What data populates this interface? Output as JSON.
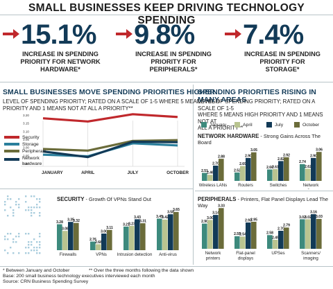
{
  "title": "SMALL BUSINESSES KEEP DRIVING TECHNOLOGY SPENDING",
  "stats": [
    {
      "value": "15.1%",
      "desc": [
        "INCREASE IN SPENDING",
        "PRIORITY FOR NETWORK",
        "HARDWARE*"
      ]
    },
    {
      "value": "9.8%",
      "desc": [
        "INCREASE IN SPENDING",
        "PRIORITY FOR",
        "PERIPHERALS*"
      ]
    },
    {
      "value": "7.4%",
      "desc": [
        "INCREASE IN SPENDING",
        "PRIORITY FOR",
        "STORAGE*"
      ]
    }
  ],
  "colors": {
    "security": "#c0282c",
    "storage": "#2a7f9c",
    "peripherals": "#6b6c3a",
    "network": "#123a57",
    "january": "#3d8a7d",
    "april": "#b9c490",
    "july": "#123a57",
    "october": "#6b6c3a",
    "arrow": "#c0282c",
    "dots": "#a9cddd"
  },
  "left_section": {
    "heading": "SMALL BUSINESSES MOVE SPENDING PRIORITIES HIGHER",
    "sub": [
      "LEVEL OF SPENDING PRIORITY; RATED ON A SCALE OF 1-5 WHERE 5 MEANS HIGH",
      "PRIORITY AND 1 MEANS NOT AT ALL A PRIORITY**"
    ]
  },
  "right_section": {
    "heading": "SPENDING PRIORITIES RISING IN MANY AREAS",
    "sub": [
      "LEVEL OF SPENDING PRIORITY; RATED ON A SCALE OF 1-5",
      "WHERE 5 MEANS HIGH PRIORITY AND 1 MEANS NOT AT",
      "ALL A PRIORITY**"
    ]
  },
  "bar_legend": [
    "January",
    "April",
    "July",
    "October"
  ],
  "chart_data": [
    {
      "type": "line",
      "categories": [
        "JANUARY",
        "APRIL",
        "JULY",
        "OCTOBER"
      ],
      "yticks": [
        "3.20",
        "3.15",
        "3.10",
        "3.05",
        "3.00",
        "2.95",
        "2.90"
      ],
      "ylim": [
        2.9,
        3.2
      ],
      "series": [
        {
          "name": "Security",
          "color_key": "security",
          "values": [
            3.18,
            3.16,
            3.205,
            3.188
          ]
        },
        {
          "name": "Storage",
          "color_key": "storage",
          "values": [
            2.955,
            2.945,
            3.025,
            3.012
          ]
        },
        {
          "name": "Peripherals",
          "color_key": "peripherals",
          "values": [
            2.99,
            2.98,
            3.04,
            3.045
          ]
        },
        {
          "name": "Network hardware",
          "color_key": "network",
          "values": [
            2.975,
            2.94,
            3.035,
            3.032
          ]
        }
      ]
    },
    {
      "type": "bar",
      "title": "NETWORK HARDWARE",
      "subtitle": " - Strong Gains Across The Board",
      "categories": [
        [
          "Wireless LANs"
        ],
        [
          "Routers"
        ],
        [
          "Switches"
        ],
        [
          "Network",
          "appliances"
        ]
      ],
      "series": [
        {
          "name": "January",
          "values": [
            2.51,
            2.52,
            2.6,
            2.74
          ]
        },
        {
          "name": "April",
          "values": [
            2.46,
            2.69,
            2.61,
            2.62
          ]
        },
        {
          "name": "July",
          "values": [
            2.7,
            2.9,
            2.82,
            2.9
          ]
        },
        {
          "name": "October",
          "values": [
            2.88,
            3.05,
            2.92,
            3.06
          ]
        }
      ],
      "labels": [
        [
          "2.51",
          "2.46",
          "2.70",
          "2.88"
        ],
        [
          "2.52",
          "2.69",
          "2.90",
          "3.05"
        ],
        [
          "2.60",
          "2.61",
          "2.82",
          "2.92"
        ],
        [
          "2.74",
          "2.62",
          "2.90",
          "3.06"
        ]
      ]
    },
    {
      "type": "bar",
      "title": "SECURITY",
      "subtitle": " - Growth Of VPNs Stand Out",
      "categories": [
        [
          "Firewalls"
        ],
        [
          "VPNs"
        ],
        [
          "Intrusion detection"
        ],
        [
          "Anti-virus"
        ]
      ],
      "series": [
        {
          "name": "January",
          "values": [
            3.28,
            2.76,
            3.21,
            3.45
          ]
        },
        {
          "name": "April",
          "values": [
            3.08,
            2.68,
            3.23,
            3.42
          ]
        },
        {
          "name": "July",
          "values": [
            3.35,
            3.0,
            3.43,
            3.58
          ]
        },
        {
          "name": "October",
          "values": [
            3.32,
            3.11,
            3.31,
            3.65
          ]
        }
      ],
      "labels": [
        [
          "3.28",
          "3.08",
          "3.35",
          "3.32"
        ],
        [
          "2.76",
          "2.68",
          "3.00",
          "3.11"
        ],
        [
          "3.21",
          "3.23",
          "3.43",
          "3.31"
        ],
        [
          "3.45",
          "3.42",
          "3.58",
          "3.65"
        ]
      ]
    },
    {
      "type": "bar",
      "title": "PERIPHERALS",
      "subtitle": " - Printers, Flat Panel Displays Lead The Way",
      "categories": [
        [
          "Network",
          "printers"
        ],
        [
          "Flat-panel",
          "displays"
        ],
        [
          "UPSes"
        ],
        [
          "Scanners/",
          "imaging"
        ]
      ],
      "series": [
        {
          "name": "January",
          "values": [
            2.9,
            2.55,
            2.58,
            3.02
          ]
        },
        {
          "name": "April",
          "values": [
            3.0,
            2.54,
            2.45,
            3.02
          ]
        },
        {
          "name": "July",
          "values": [
            3.14,
            2.93,
            2.7,
            3.16
          ]
        },
        {
          "name": "October",
          "values": [
            3.33,
            2.95,
            2.79,
            3.03
          ]
        }
      ],
      "labels": [
        [
          "2.90",
          "3.00",
          "3.14",
          "3.33"
        ],
        [
          "2.55",
          "2.54",
          "2.93",
          "2.95"
        ],
        [
          "2.58",
          "2.45",
          "2.70",
          "2.79"
        ],
        [
          "3.02",
          "3.02",
          "3.16",
          "3.03"
        ]
      ]
    }
  ],
  "footnotes": {
    "left1": "* Between January and October",
    "right1": "** Over the three months following the data shown",
    "line2": "Base: 200 small business technology executives interviewed each month",
    "line3": "Source: CRN Business Spending Survey"
  }
}
